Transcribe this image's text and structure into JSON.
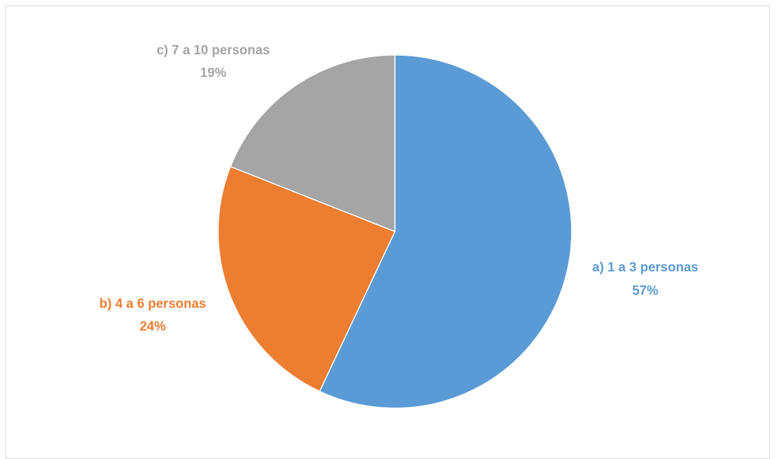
{
  "chart_data": {
    "type": "pie",
    "title": "",
    "slices": [
      {
        "label": "a) 1 a 3 personas",
        "value": 57,
        "value_label": "57%",
        "color": "#5b9bd5"
      },
      {
        "label": "b) 4 a 6 personas",
        "value": 24,
        "value_label": "24%",
        "color": "#ed7d31"
      },
      {
        "label": "c) 7 a 10 personas",
        "value": 19,
        "value_label": "19%",
        "color": "#a5a5a5"
      }
    ],
    "legend": "none",
    "label_position": "outside"
  }
}
